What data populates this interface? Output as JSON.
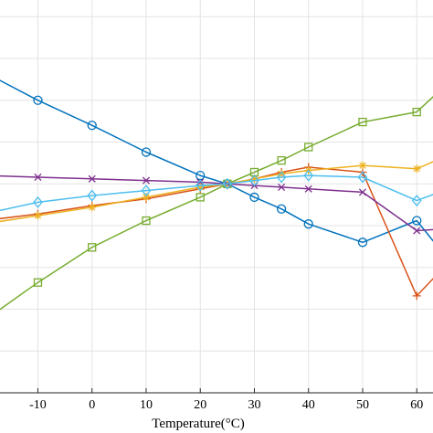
{
  "chart_data": {
    "type": "line",
    "xlabel": "Temperature(°C)",
    "ylabel": "",
    "title": "",
    "xlim": [
      -17,
      63
    ],
    "ylim": [
      -1.25,
      1.1
    ],
    "x_ticks": [
      -10,
      0,
      10,
      20,
      30,
      40,
      50,
      60
    ],
    "y_gridlines": [
      1.0,
      0.75,
      0.5,
      0.25,
      0.0,
      -0.25,
      -0.5,
      -0.75,
      -1.0
    ],
    "y_tick_labels_visible": false,
    "grid": true,
    "legend": "none",
    "series": [
      {
        "color": "#0072BD",
        "marker": "circle",
        "x": [
          -20,
          -10,
          0,
          10,
          20,
          25,
          30,
          35,
          40,
          50,
          60,
          65
        ],
        "y": [
          0.67,
          0.5,
          0.35,
          0.19,
          0.05,
          0.0,
          -0.08,
          -0.15,
          -0.24,
          -0.35,
          -0.22,
          -0.42
        ]
      },
      {
        "color": "#D95319",
        "marker": "plus",
        "x": [
          -20,
          -10,
          0,
          10,
          20,
          25,
          30,
          35,
          40,
          50,
          60,
          65
        ],
        "y": [
          -0.22,
          -0.18,
          -0.13,
          -0.09,
          -0.03,
          0.0,
          0.03,
          0.07,
          0.1,
          0.07,
          -0.67,
          -0.5
        ]
      },
      {
        "color": "#EDB120",
        "marker": "asterisk",
        "x": [
          -20,
          -10,
          0,
          10,
          20,
          25,
          30,
          35,
          40,
          50,
          60,
          65
        ],
        "y": [
          -0.24,
          -0.19,
          -0.14,
          -0.08,
          -0.02,
          0.0,
          0.03,
          0.06,
          0.08,
          0.11,
          0.09,
          0.16
        ]
      },
      {
        "color": "#7E2F8E",
        "marker": "x",
        "x": [
          -20,
          -10,
          0,
          10,
          20,
          25,
          30,
          35,
          40,
          50,
          60,
          65
        ],
        "y": [
          0.05,
          0.04,
          0.03,
          0.02,
          0.01,
          0.0,
          -0.01,
          -0.02,
          -0.03,
          -0.05,
          -0.28,
          -0.27
        ]
      },
      {
        "color": "#77AC30",
        "marker": "square",
        "x": [
          -20,
          -10,
          0,
          10,
          20,
          25,
          30,
          35,
          40,
          50,
          60,
          65
        ],
        "y": [
          -0.82,
          -0.59,
          -0.38,
          -0.22,
          -0.08,
          0.0,
          0.07,
          0.14,
          0.22,
          0.37,
          0.43,
          0.58
        ]
      },
      {
        "color": "#4DBEEE",
        "marker": "diamond",
        "x": [
          -20,
          -10,
          0,
          10,
          20,
          25,
          30,
          35,
          40,
          50,
          60,
          65
        ],
        "y": [
          -0.18,
          -0.11,
          -0.07,
          -0.04,
          -0.01,
          0.0,
          0.02,
          0.04,
          0.05,
          0.04,
          -0.1,
          -0.04
        ]
      }
    ]
  }
}
